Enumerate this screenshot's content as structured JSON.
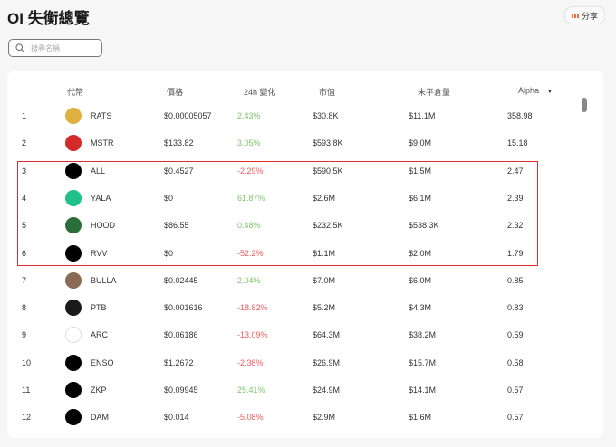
{
  "header": {
    "title": "OI 失衡總覽",
    "share_label": "分享",
    "share_icon": "share-icon"
  },
  "search": {
    "placeholder": "搜尋名稱",
    "value": ""
  },
  "colors": {
    "positive": "#7cc56a",
    "negative": "#ee5a5a",
    "highlight": "#e32b2b",
    "share_accent": "#f0703a"
  },
  "table": {
    "columns": [
      "代幣",
      "價格",
      "24h 變化",
      "市值",
      "未平倉量",
      "Alpha"
    ],
    "sort": {
      "column": "Alpha",
      "direction": "desc"
    },
    "highlighted_ranks": [
      3,
      4,
      5,
      6
    ],
    "rows": [
      {
        "rank": "1",
        "symbol": "RATS",
        "price": "$0.00005057",
        "change": "2.43%",
        "mcap": "$30.8K",
        "oi": "$11.1M",
        "alpha": "358.98",
        "logo_color": "#e0b040"
      },
      {
        "rank": "2",
        "symbol": "MSTR",
        "price": "$133.82",
        "change": "3.05%",
        "mcap": "$593.8K",
        "oi": "$9.0M",
        "alpha": "15.18",
        "logo_color": "#d42a2a"
      },
      {
        "rank": "3",
        "symbol": "ALL",
        "price": "$0.4527",
        "change": "-2.29%",
        "mcap": "$590.5K",
        "oi": "$1.5M",
        "alpha": "2.47",
        "logo_color": "#000000"
      },
      {
        "rank": "4",
        "symbol": "YALA",
        "price": "$0",
        "change": "61.87%",
        "mcap": "$2.6M",
        "oi": "$6.1M",
        "alpha": "2.39",
        "logo_color": "#1fc08a"
      },
      {
        "rank": "5",
        "symbol": "HOOD",
        "price": "$86.55",
        "change": "0.48%",
        "mcap": "$232.5K",
        "oi": "$538.3K",
        "alpha": "2.32",
        "logo_color": "#2a6e3a"
      },
      {
        "rank": "6",
        "symbol": "RVV",
        "price": "$0",
        "change": "-52.2%",
        "mcap": "$1.1M",
        "oi": "$2.0M",
        "alpha": "1.79",
        "logo_color": "#000000"
      },
      {
        "rank": "7",
        "symbol": "BULLA",
        "price": "$0.02445",
        "change": "2.04%",
        "mcap": "$7.0M",
        "oi": "$6.0M",
        "alpha": "0.85",
        "logo_color": "#8a6a55"
      },
      {
        "rank": "8",
        "symbol": "PTB",
        "price": "$0.001616",
        "change": "-18.82%",
        "mcap": "$5.2M",
        "oi": "$4.3M",
        "alpha": "0.83",
        "logo_color": "#1a1a1a"
      },
      {
        "rank": "9",
        "symbol": "ARC",
        "price": "$0.06186",
        "change": "-13.09%",
        "mcap": "$64.3M",
        "oi": "$38.2M",
        "alpha": "0.59",
        "logo_color": "#ffffff"
      },
      {
        "rank": "10",
        "symbol": "ENSO",
        "price": "$1.2672",
        "change": "-2.38%",
        "mcap": "$26.9M",
        "oi": "$15.7M",
        "alpha": "0.58",
        "logo_color": "#000000"
      },
      {
        "rank": "11",
        "symbol": "ZKP",
        "price": "$0.09945",
        "change": "25.41%",
        "mcap": "$24.9M",
        "oi": "$14.1M",
        "alpha": "0.57",
        "logo_color": "#000000"
      },
      {
        "rank": "12",
        "symbol": "DAM",
        "price": "$0.014",
        "change": "-5.08%",
        "mcap": "$2.9M",
        "oi": "$1.6M",
        "alpha": "0.57",
        "logo_color": "#000000"
      }
    ]
  }
}
